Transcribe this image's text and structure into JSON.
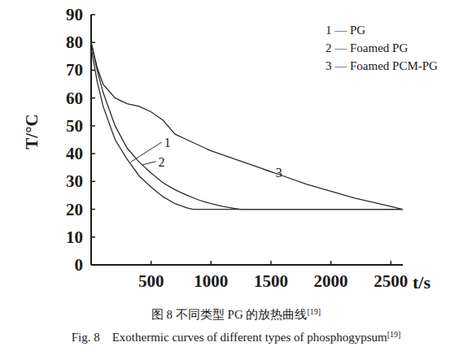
{
  "chart_data": {
    "type": "line",
    "x_label": "t/s",
    "y_label": "T/°C",
    "xlim": [
      0,
      2600
    ],
    "ylim": [
      0,
      90
    ],
    "xticks": [
      500,
      1000,
      1500,
      2000,
      2500
    ],
    "yticks": [
      0,
      10,
      20,
      30,
      40,
      50,
      60,
      70,
      80,
      90
    ],
    "grid": false,
    "legend": "top-right",
    "series": [
      {
        "name": "1 — PG",
        "color": "#2b2b2b",
        "line_style": "solid",
        "x": [
          0,
          50,
          100,
          200,
          300,
          400,
          500,
          600,
          700,
          800,
          850,
          2600
        ],
        "values": [
          78,
          66,
          57,
          45,
          38,
          32,
          28,
          24.5,
          22,
          20.5,
          20,
          20
        ]
      },
      {
        "name": "2 — Foamed PG",
        "color": "#2b2b2b",
        "line_style": "solid",
        "x": [
          0,
          50,
          100,
          200,
          300,
          400,
          500,
          600,
          700,
          800,
          900,
          1000,
          1100,
          1200,
          1250,
          2600
        ],
        "values": [
          80,
          70,
          62,
          50,
          42,
          37,
          33,
          29.5,
          27,
          25,
          23.3,
          22,
          21,
          20.3,
          20,
          20
        ]
      },
      {
        "name": "3 — Foamed PCM-PG",
        "color": "#2b2b2b",
        "line_style": "solid",
        "x": [
          0,
          50,
          100,
          200,
          300,
          400,
          500,
          600,
          700,
          800,
          1000,
          1200,
          1400,
          1600,
          1800,
          2000,
          2200,
          2400,
          2600
        ],
        "values": [
          80,
          71,
          65,
          60,
          58,
          57,
          55,
          52,
          47,
          45,
          41,
          38,
          35,
          32,
          29,
          26.5,
          24,
          22,
          20
        ]
      }
    ],
    "annotations": [
      {
        "text": "1",
        "x": 610,
        "y": 43,
        "target_x": 330,
        "target_y": 37
      },
      {
        "text": "2",
        "x": 560,
        "y": 36,
        "target_x": 430,
        "target_y": 36
      },
      {
        "text": "3",
        "x": 1540,
        "y": 32,
        "target_x": 1430,
        "target_y": 34.5
      }
    ],
    "caption": {
      "zh": "图 8  不同类型 PG 的放热曲线",
      "en": "Fig. 8    Exothermic curves of different types of phosphogypsum",
      "ref": "[19]"
    }
  }
}
